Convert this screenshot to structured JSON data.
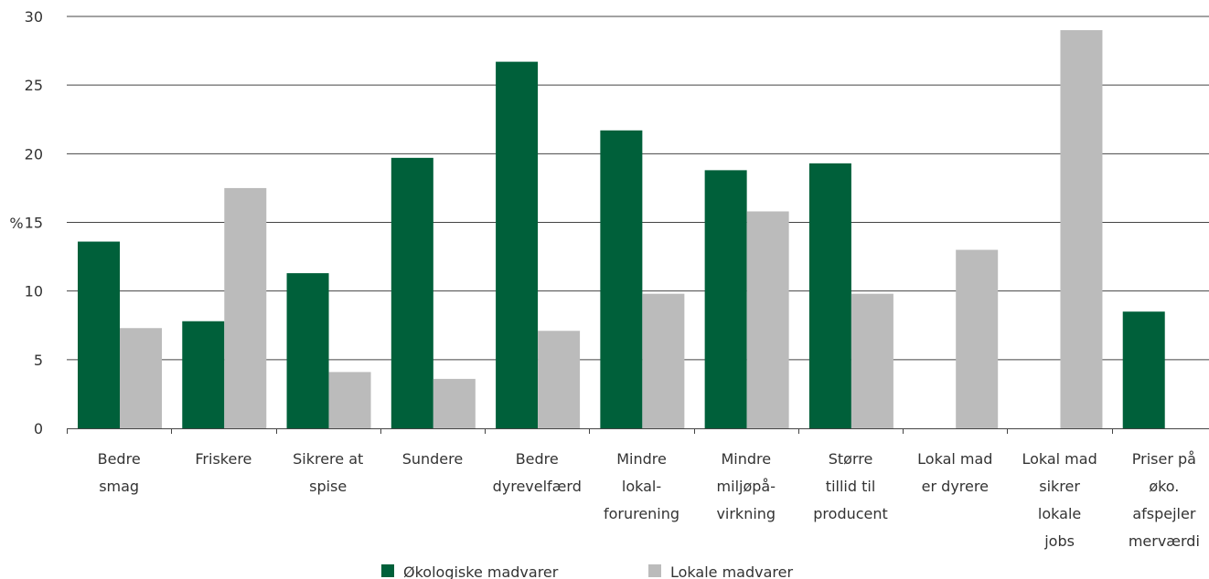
{
  "chart_data": {
    "type": "bar",
    "title": "",
    "xlabel": "",
    "ylabel": "%",
    "ylim": [
      0,
      30
    ],
    "yticks": [
      0,
      5,
      10,
      15,
      20,
      25,
      30
    ],
    "grid": true,
    "legend_position": "bottom",
    "categories": [
      [
        "Bedre",
        "smag"
      ],
      [
        "Friskere"
      ],
      [
        "Sikrere at",
        "spise"
      ],
      [
        "Sundere"
      ],
      [
        "Bedre",
        "dyrevelfærd"
      ],
      [
        "Mindre",
        "lokal-",
        "forurening"
      ],
      [
        "Mindre",
        "miljøpå-",
        "virkning"
      ],
      [
        "Større",
        "tillid til",
        "producent"
      ],
      [
        "Lokal mad",
        "er dyrere"
      ],
      [
        "Lokal mad",
        "sikrer",
        "lokale",
        "jobs"
      ],
      [
        "Priser på",
        "øko.",
        "afspejler",
        "merværdi"
      ]
    ],
    "series": [
      {
        "name": "Økologiske madvarer",
        "color": "#00603a",
        "values": [
          13.6,
          7.8,
          11.3,
          19.7,
          26.7,
          21.7,
          18.8,
          19.3,
          null,
          null,
          8.5
        ]
      },
      {
        "name": "Lokale madvarer",
        "color": "#bbbbbb",
        "values": [
          7.3,
          17.5,
          4.1,
          3.6,
          7.1,
          9.8,
          15.8,
          9.8,
          13.0,
          29.0,
          null
        ]
      }
    ]
  }
}
